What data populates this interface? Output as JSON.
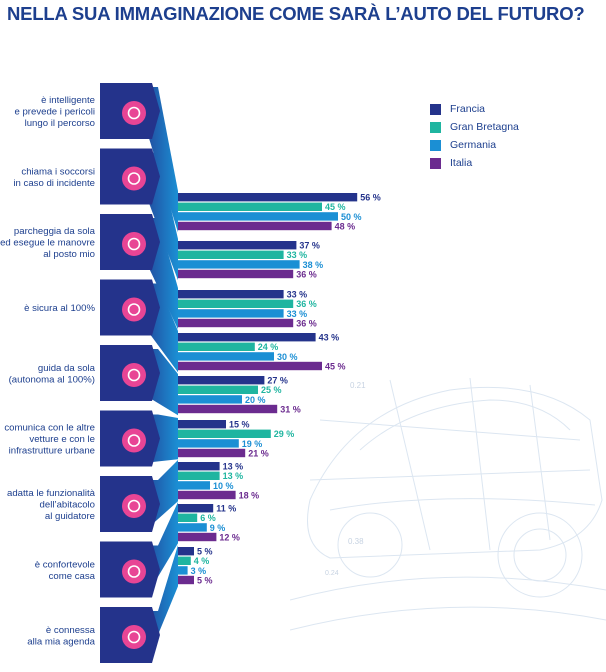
{
  "title": "NELLA SUA IMMAGINAZIONE COME SARÀ L’AUTO DEL FUTURO?",
  "colors": {
    "francia": "#24338b",
    "gran_bretagna": "#1fb5a0",
    "germania": "#1b8fd4",
    "italia": "#6b2b8f",
    "text": "#1d3f8e"
  },
  "background": {
    "car_numbers": [
      "0.21",
      "0.38",
      "0.24"
    ]
  },
  "chart_data": {
    "type": "bar",
    "title": "NELLA SUA IMMAGINAZIONE COME SARÀ L’AUTO DEL FUTURO?",
    "value_unit": "%",
    "categories": [
      [
        "è intelligente",
        "e prevede i pericoli",
        "lungo il percorso"
      ],
      [
        "chiama i soccorsi",
        "in caso di incidente"
      ],
      [
        "parcheggia da sola",
        "ed esegue le manovre",
        "al posto mio"
      ],
      [
        "è sicura al 100%"
      ],
      [
        "guida da sola",
        "(autonoma al 100%)"
      ],
      [
        "comunica con le altre",
        "vetture e con le",
        "infrastrutture urbane"
      ],
      [
        "adatta le funzionalità",
        "dell’abitacolo",
        "al guidatore"
      ],
      [
        "è confortevole",
        "come casa"
      ],
      [
        "è connessa",
        "alla mia agenda"
      ]
    ],
    "icons": [
      "siren-icon",
      "phone-call-icon",
      "parking-car-icon",
      "lock-icon",
      "steering-wheel-icon",
      "signal-icon",
      "driver-icon",
      "armchair-icon",
      "calendar-icon"
    ],
    "series": [
      {
        "name": "Francia",
        "color": "#24338b",
        "values": [
          56,
          37,
          33,
          43,
          27,
          15,
          13,
          11,
          5
        ]
      },
      {
        "name": "Gran Bretagna",
        "color": "#1fb5a0",
        "values": [
          45,
          33,
          36,
          24,
          25,
          29,
          13,
          6,
          4
        ]
      },
      {
        "name": "Germania",
        "color": "#1b8fd4",
        "values": [
          50,
          38,
          33,
          30,
          20,
          19,
          10,
          9,
          3
        ]
      },
      {
        "name": "Italia",
        "color": "#6b2b8f",
        "values": [
          48,
          36,
          36,
          45,
          31,
          21,
          18,
          12,
          5
        ]
      }
    ],
    "value_labels": [
      [
        "56 %",
        "45 %",
        "50 %",
        "48 %"
      ],
      [
        "37 %",
        "33 %",
        "38 %",
        "36 %"
      ],
      [
        "33 %",
        "36 %",
        "33 %",
        "36 %"
      ],
      [
        "43 %",
        "24 %",
        "30 %",
        "45 %"
      ],
      [
        "27 %",
        "25 %",
        "20 %",
        "31 %"
      ],
      [
        "15 %",
        "29 %",
        "19 %",
        "21 %"
      ],
      [
        "13 %",
        "13 %",
        "10 %",
        "18 %"
      ],
      [
        "11 %",
        "6 %",
        "9 %",
        "12  %"
      ],
      [
        "5 %",
        "4 %",
        "3 %",
        "5 %"
      ]
    ],
    "legend_position": "top-right"
  }
}
